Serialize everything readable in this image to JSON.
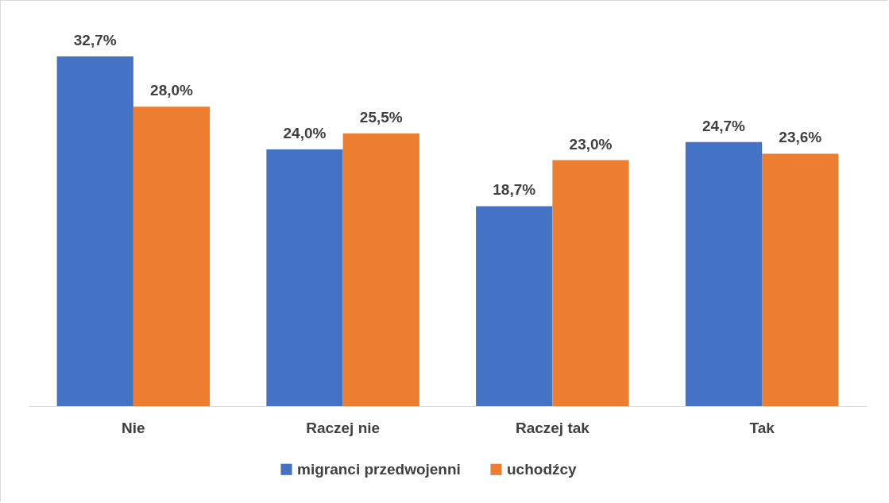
{
  "chart_data": {
    "type": "bar",
    "categories": [
      "Nie",
      "Raczej nie",
      "Raczej tak",
      "Tak"
    ],
    "series": [
      {
        "name": "migranci przedwojenni",
        "color": "#4472c4",
        "values": [
          32.7,
          24.0,
          18.7,
          24.7
        ],
        "value_labels": [
          "32,7%",
          "24,0%",
          "18,7%",
          "24,7%"
        ]
      },
      {
        "name": "uchodźcy",
        "color": "#ed7d31",
        "values": [
          28.0,
          25.5,
          23.0,
          23.6
        ],
        "value_labels": [
          "28,0%",
          "25,5%",
          "23,0%",
          "23,6%"
        ]
      }
    ],
    "legend": "bottom"
  }
}
